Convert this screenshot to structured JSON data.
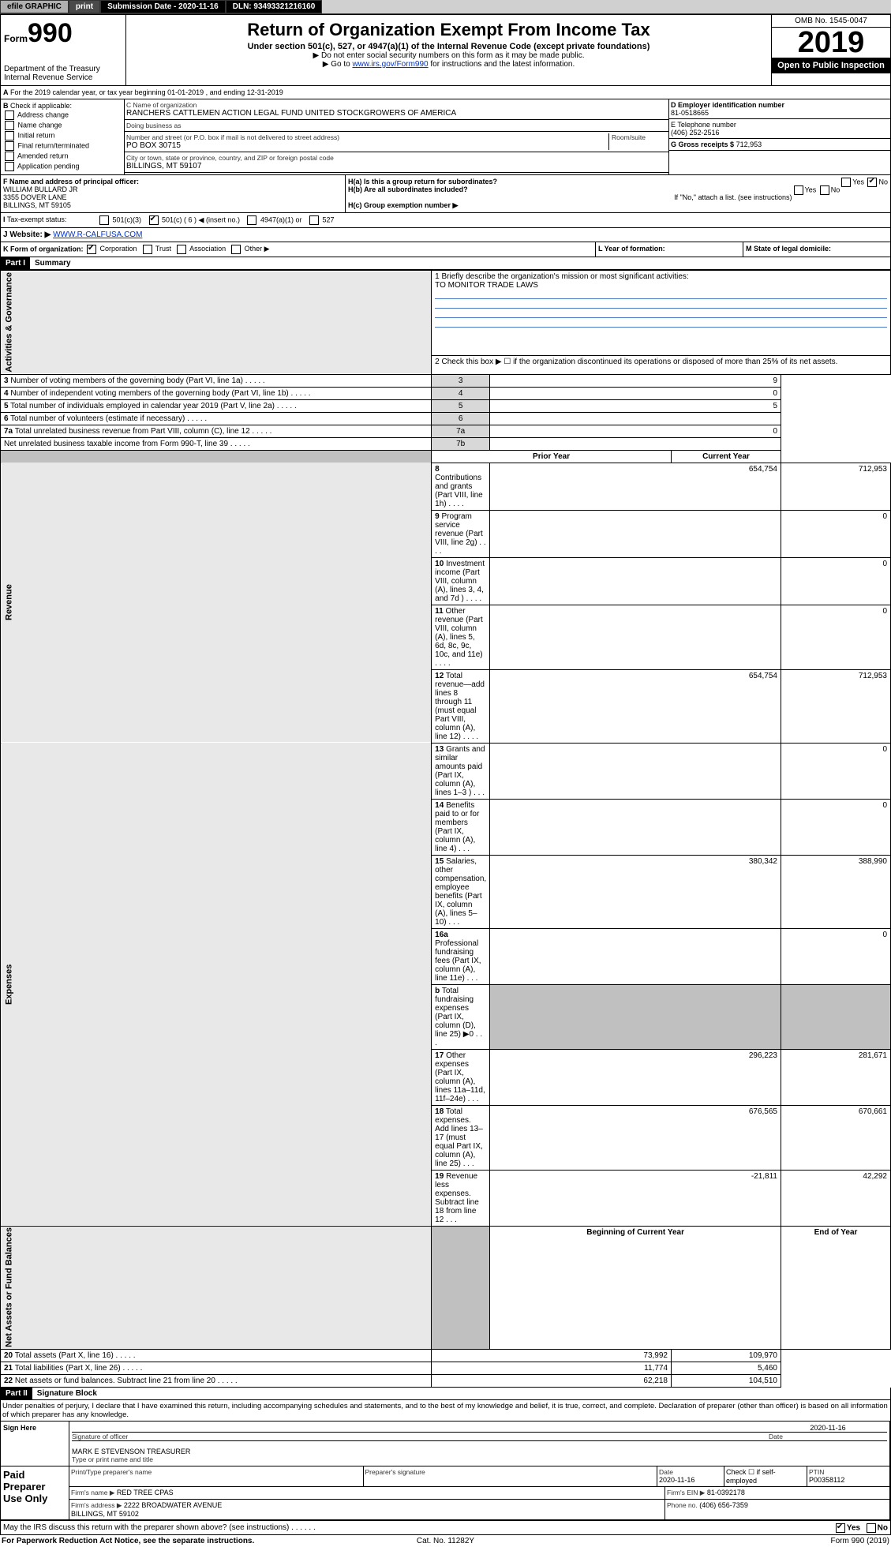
{
  "topbar": {
    "efile": "efile GRAPHIC",
    "print": "print",
    "subdate_label": "Submission Date - 2020-11-16",
    "dln": "DLN: 93493321216160"
  },
  "header": {
    "form_prefix": "Form",
    "form_num": "990",
    "dept": "Department of the Treasury",
    "irs": "Internal Revenue Service",
    "title": "Return of Organization Exempt From Income Tax",
    "sub": "Under section 501(c), 527, or 4947(a)(1) of the Internal Revenue Code (except private foundations)",
    "note1": "▶ Do not enter social security numbers on this form as it may be made public.",
    "note2_pre": "▶ Go to ",
    "note2_link": "www.irs.gov/Form990",
    "note2_post": " for instructions and the latest information.",
    "omb": "OMB No. 1545-0047",
    "year": "2019",
    "open": "Open to Public Inspection"
  },
  "A": {
    "text": "For the 2019 calendar year, or tax year beginning 01-01-2019 , and ending 12-31-2019"
  },
  "B": {
    "title": "Check if applicable:",
    "items": [
      "Address change",
      "Name change",
      "Initial return",
      "Final return/terminated",
      "Amended return",
      "Application pending"
    ]
  },
  "C": {
    "name_lbl": "C Name of organization",
    "name": "RANCHERS CATTLEMEN ACTION LEGAL FUND UNITED STOCKGROWERS OF AMERICA",
    "dba_lbl": "Doing business as",
    "dba": "",
    "addr_lbl": "Number and street (or P.O. box if mail is not delivered to street address)",
    "room_lbl": "Room/suite",
    "addr": "PO BOX 30715",
    "city_lbl": "City or town, state or province, country, and ZIP or foreign postal code",
    "city": "BILLINGS, MT  59107"
  },
  "D": {
    "lbl": "D Employer identification number",
    "val": "81-0518665"
  },
  "E": {
    "lbl": "E Telephone number",
    "val": "(406) 252-2516"
  },
  "G": {
    "lbl": "G Gross receipts $",
    "val": "712,953"
  },
  "F": {
    "lbl": "F Name and address of principal officer:",
    "name": "WILLIAM BULLARD JR",
    "addr1": "3355 DOVER LANE",
    "addr2": "BILLINGS, MT  59105"
  },
  "H": {
    "a": "H(a) Is this a group return for subordinates?",
    "a_yes": "Yes",
    "a_no": "No",
    "a_checked": "No",
    "b": "H(b) Are all subordinates included?",
    "b_yes": "Yes",
    "b_no": "No",
    "b_note": "If \"No,\" attach a list. (see instructions)",
    "c": "H(c) Group exemption number ▶"
  },
  "I": {
    "lbl": "Tax-exempt status:",
    "opts": [
      "501(c)(3)",
      "501(c) ( 6 ) ◀ (insert no.)",
      "4947(a)(1) or",
      "527"
    ],
    "checked": 1
  },
  "J": {
    "lbl": "Website: ▶",
    "val": "WWW.R-CALFUSA.COM"
  },
  "K": {
    "lbl": "K Form of organization:",
    "opts": [
      "Corporation",
      "Trust",
      "Association",
      "Other ▶"
    ],
    "checked": 0
  },
  "L": {
    "lbl": "L Year of formation:",
    "val": ""
  },
  "M": {
    "lbl": "M State of legal domicile:",
    "val": ""
  },
  "part1": {
    "hdr": "Part I",
    "title": "Summary",
    "q1": "1 Briefly describe the organization's mission or most significant activities:",
    "q1v": "TO MONITOR TRADE LAWS",
    "q2": "2  Check this box ▶ ☐  if the organization discontinued its operations or disposed of more than 25% of its net assets.",
    "rows_gov": [
      {
        "n": "3",
        "t": "Number of voting members of the governing body (Part VI, line 1a)",
        "k": "3",
        "v": "9"
      },
      {
        "n": "4",
        "t": "Number of independent voting members of the governing body (Part VI, line 1b)",
        "k": "4",
        "v": "0"
      },
      {
        "n": "5",
        "t": "Total number of individuals employed in calendar year 2019 (Part V, line 2a)",
        "k": "5",
        "v": "5"
      },
      {
        "n": "6",
        "t": "Total number of volunteers (estimate if necessary)",
        "k": "6",
        "v": ""
      },
      {
        "n": "7a",
        "t": "Total unrelated business revenue from Part VIII, column (C), line 12",
        "k": "7a",
        "v": "0"
      },
      {
        "n": "",
        "t": "Net unrelated business taxable income from Form 990-T, line 39",
        "k": "7b",
        "v": ""
      }
    ],
    "prior_lbl": "Prior Year",
    "curr_lbl": "Current Year",
    "rows_rev": [
      {
        "n": "8",
        "t": "Contributions and grants (Part VIII, line 1h)",
        "p": "654,754",
        "c": "712,953"
      },
      {
        "n": "9",
        "t": "Program service revenue (Part VIII, line 2g)",
        "p": "",
        "c": "0"
      },
      {
        "n": "10",
        "t": "Investment income (Part VIII, column (A), lines 3, 4, and 7d )",
        "p": "",
        "c": "0"
      },
      {
        "n": "11",
        "t": "Other revenue (Part VIII, column (A), lines 5, 6d, 8c, 9c, 10c, and 11e)",
        "p": "",
        "c": "0"
      },
      {
        "n": "12",
        "t": "Total revenue—add lines 8 through 11 (must equal Part VIII, column (A), line 12)",
        "p": "654,754",
        "c": "712,953"
      }
    ],
    "rows_exp": [
      {
        "n": "13",
        "t": "Grants and similar amounts paid (Part IX, column (A), lines 1–3 )",
        "p": "",
        "c": "0"
      },
      {
        "n": "14",
        "t": "Benefits paid to or for members (Part IX, column (A), line 4)",
        "p": "",
        "c": "0"
      },
      {
        "n": "15",
        "t": "Salaries, other compensation, employee benefits (Part IX, column (A), lines 5–10)",
        "p": "380,342",
        "c": "388,990"
      },
      {
        "n": "16a",
        "t": "Professional fundraising fees (Part IX, column (A), line 11e)",
        "p": "",
        "c": "0"
      },
      {
        "n": "b",
        "t": "Total fundraising expenses (Part IX, column (D), line 25) ▶0",
        "p": "fill",
        "c": "fill"
      },
      {
        "n": "17",
        "t": "Other expenses (Part IX, column (A), lines 11a–11d, 11f–24e)",
        "p": "296,223",
        "c": "281,671"
      },
      {
        "n": "18",
        "t": "Total expenses. Add lines 13–17 (must equal Part IX, column (A), line 25)",
        "p": "676,565",
        "c": "670,661"
      },
      {
        "n": "19",
        "t": "Revenue less expenses. Subtract line 18 from line 12",
        "p": "-21,811",
        "c": "42,292"
      }
    ],
    "beg_lbl": "Beginning of Current Year",
    "end_lbl": "End of Year",
    "rows_net": [
      {
        "n": "20",
        "t": "Total assets (Part X, line 16)",
        "p": "73,992",
        "c": "109,970"
      },
      {
        "n": "21",
        "t": "Total liabilities (Part X, line 26)",
        "p": "11,774",
        "c": "5,460"
      },
      {
        "n": "22",
        "t": "Net assets or fund balances. Subtract line 21 from line 20",
        "p": "62,218",
        "c": "104,510"
      }
    ],
    "tabs": {
      "gov": "Activities & Governance",
      "rev": "Revenue",
      "exp": "Expenses",
      "net": "Net Assets or Fund Balances"
    }
  },
  "part2": {
    "hdr": "Part II",
    "title": "Signature Block",
    "perjury": "Under penalties of perjury, I declare that I have examined this return, including accompanying schedules and statements, and to the best of my knowledge and belief, it is true, correct, and complete. Declaration of preparer (other than officer) is based on all information of which preparer has any knowledge.",
    "sign_here": "Sign Here",
    "sig_officer": "Signature of officer",
    "sig_date": "2020-11-16",
    "sig_date_lbl": "Date",
    "officer_name": "MARK E STEVENSON TREASURER",
    "officer_lbl": "Type or print name and title",
    "paid": "Paid Preparer Use Only",
    "prep_name_lbl": "Print/Type preparer's name",
    "prep_sig_lbl": "Preparer's signature",
    "date_lbl": "Date",
    "date": "2020-11-16",
    "check_lbl": "Check ☐ if self-employed",
    "ptin_lbl": "PTIN",
    "ptin": "P00358112",
    "firm_name_lbl": "Firm's name  ▶",
    "firm_name": "RED TREE CPAS",
    "firm_ein_lbl": "Firm's EIN ▶",
    "firm_ein": "81-0392178",
    "firm_addr_lbl": "Firm's address ▶",
    "firm_addr": "2222 BROADWATER AVENUE",
    "firm_city": "BILLINGS, MT  59102",
    "phone_lbl": "Phone no.",
    "phone": "(406) 656-7359",
    "discuss": "May the IRS discuss this return with the preparer shown above? (see instructions)",
    "discuss_yes": "Yes",
    "discuss_no": "No"
  },
  "footer": {
    "pra": "For Paperwork Reduction Act Notice, see the separate instructions.",
    "cat": "Cat. No. 11282Y",
    "form": "Form 990 (2019)"
  },
  "colors": {
    "link": "#0033cc",
    "shade": "#c0c0c0",
    "blueline": "#4a7ac7"
  }
}
